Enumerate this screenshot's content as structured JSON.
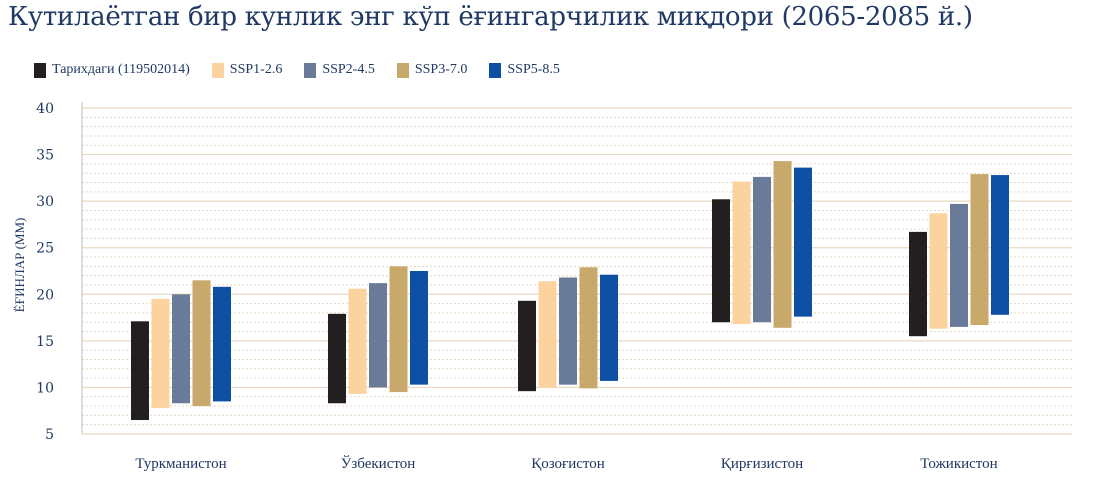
{
  "chart_data": {
    "type": "bar",
    "subtype": "floating-range",
    "title": "Кутилаётган бир кунлик энг кўп ёғингарчилик миқдори (2065-2085 й.)",
    "ylabel": "ЁҒИНЛАР (ММ)",
    "xlabel": "",
    "ylim": [
      5,
      40
    ],
    "yticks": [
      5,
      10,
      15,
      20,
      25,
      30,
      35,
      40
    ],
    "grid": true,
    "legend_position": "top-left",
    "categories": [
      "Туркманистон",
      "Ўзбекистон",
      "Қозоғистон",
      "Қирғизистон",
      "Тожикистон"
    ],
    "series": [
      {
        "name": "Тарихдаги (119502014)",
        "color": "#231f20",
        "low": [
          6.5,
          8.3,
          9.6,
          17.0,
          15.5
        ],
        "high": [
          17.1,
          17.9,
          19.3,
          30.2,
          26.7
        ]
      },
      {
        "name": "SSP1-2.6",
        "color": "#fcd39e",
        "low": [
          7.8,
          9.3,
          10.0,
          16.8,
          16.3
        ],
        "high": [
          19.5,
          20.6,
          21.4,
          32.1,
          28.7
        ]
      },
      {
        "name": "SSP2-4.5",
        "color": "#6a7b9a",
        "low": [
          8.3,
          10.0,
          10.3,
          17.0,
          16.5
        ],
        "high": [
          20.0,
          21.2,
          21.8,
          32.6,
          29.7
        ]
      },
      {
        "name": "SSP3-7.0",
        "color": "#c8a86b",
        "low": [
          8.0,
          9.5,
          9.9,
          16.4,
          16.7
        ],
        "high": [
          21.5,
          23.0,
          22.9,
          34.3,
          32.9
        ]
      },
      {
        "name": "SSP5-8.5",
        "color": "#0d4fa3",
        "low": [
          8.5,
          10.3,
          10.7,
          17.6,
          17.8
        ],
        "high": [
          20.8,
          22.5,
          22.1,
          33.6,
          32.8
        ]
      }
    ]
  },
  "colors": {
    "title": "#1f3864",
    "grid": "#e8d9c3",
    "axis": "#bfbfbf"
  }
}
